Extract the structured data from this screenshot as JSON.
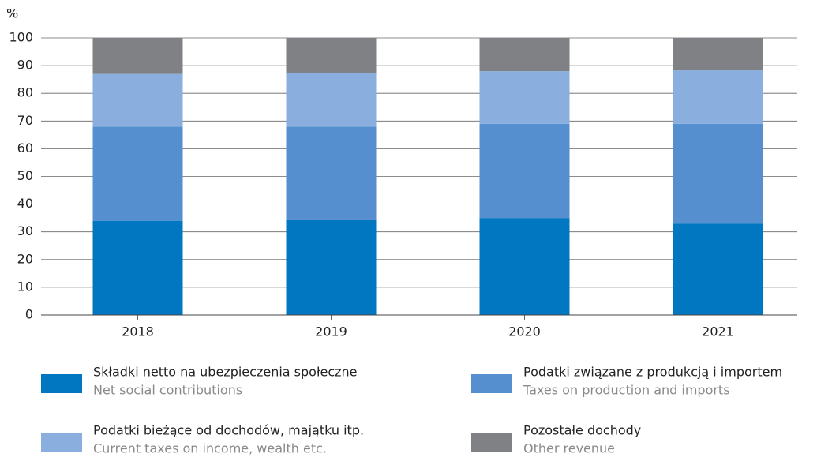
{
  "chart_data": {
    "type": "stacked_bar",
    "y_unit": "%",
    "categories": [
      "2018",
      "2019",
      "2020",
      "2021"
    ],
    "series": [
      {
        "name": "Składki netto na ubezpieczenia społeczne",
        "name_en": "Net social contributions",
        "color": "#0077c0",
        "values": [
          34,
          34.2,
          35,
          33
        ]
      },
      {
        "name": "Podatki związane z produkcją i importem",
        "name_en": "Taxes on production and imports",
        "color": "#558fcf",
        "values": [
          34,
          33.8,
          34,
          36
        ]
      },
      {
        "name": "Podatki bieżące od dochodów, majątku itp.",
        "name_en": "Current taxes on income, wealth etc.",
        "color": "#8aaedd",
        "values": [
          19,
          19.2,
          19,
          19.3
        ]
      },
      {
        "name": "Pozostałe dochody",
        "name_en": "Other revenue",
        "color": "#808184",
        "values": [
          13,
          12.8,
          12,
          11.7
        ]
      }
    ],
    "ylim": [
      0,
      100
    ],
    "yticks": [
      0,
      10,
      20,
      30,
      40,
      50,
      60,
      70,
      80,
      90,
      100
    ],
    "grid": true
  }
}
